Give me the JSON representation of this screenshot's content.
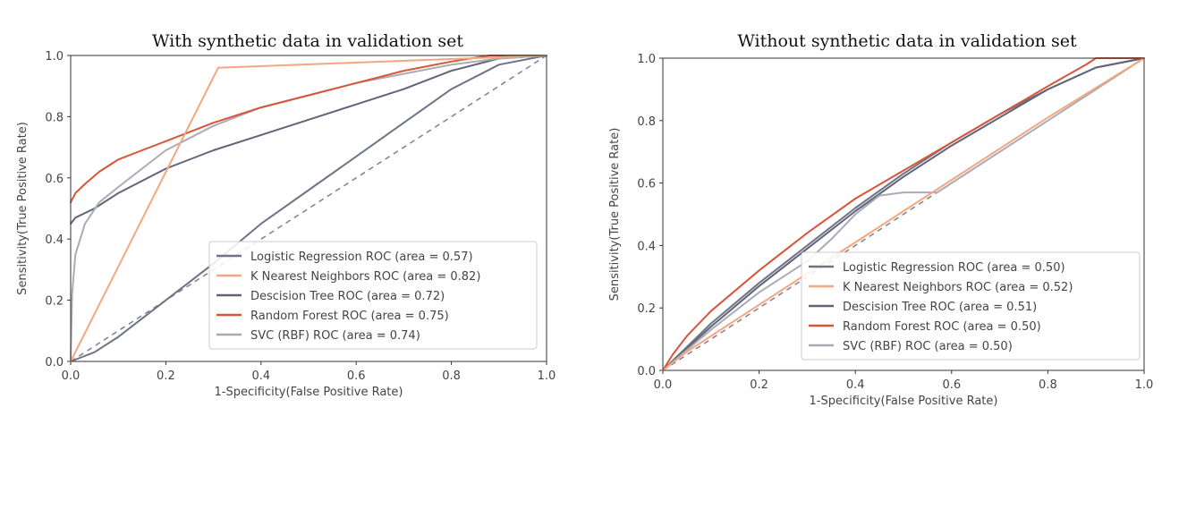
{
  "chart_data": [
    {
      "type": "line",
      "title": "With synthetic data in validation set",
      "xlabel": "1-Specificity(False Positive Rate)",
      "ylabel": "Sensitivity(True Positive Rate)",
      "xlim": [
        0,
        1
      ],
      "ylim": [
        0,
        1
      ],
      "xticks": [
        "0.0",
        "0.2",
        "0.4",
        "0.6",
        "0.8",
        "1.0"
      ],
      "yticks": [
        "0.0",
        "0.2",
        "0.4",
        "0.6",
        "0.8",
        "1.0"
      ],
      "grid": false,
      "legend_position": "lower-right",
      "series": [
        {
          "name": "Logistic Regression ROC (area = 0.57)",
          "color": "#6e7486",
          "x": [
            0,
            0.05,
            0.1,
            0.2,
            0.3,
            0.4,
            0.5,
            0.6,
            0.7,
            0.8,
            0.9,
            1.0
          ],
          "y": [
            0,
            0.03,
            0.08,
            0.2,
            0.32,
            0.45,
            0.56,
            0.67,
            0.78,
            0.89,
            0.97,
            1.0
          ]
        },
        {
          "name": "K Nearest Neighbors ROC (area = 0.82)",
          "color": "#f4a67f",
          "x": [
            0,
            0.31,
            1.0
          ],
          "y": [
            0,
            0.96,
            1.0
          ]
        },
        {
          "name": "Descision Tree ROC (area = 0.72)",
          "color": "#5f6577",
          "x": [
            0,
            0.01,
            0.05,
            0.1,
            0.2,
            0.3,
            0.4,
            0.5,
            0.6,
            0.7,
            0.8,
            0.9,
            1.0
          ],
          "y": [
            0.45,
            0.47,
            0.5,
            0.55,
            0.63,
            0.69,
            0.74,
            0.79,
            0.84,
            0.89,
            0.95,
            0.99,
            1.0
          ]
        },
        {
          "name": "Random Forest ROC (area = 0.75)",
          "color": "#d9553a",
          "x": [
            0,
            0.01,
            0.03,
            0.06,
            0.1,
            0.15,
            0.2,
            0.3,
            0.4,
            0.5,
            0.6,
            0.7,
            0.8,
            0.88,
            1.0
          ],
          "y": [
            0.52,
            0.55,
            0.58,
            0.62,
            0.66,
            0.69,
            0.72,
            0.78,
            0.83,
            0.87,
            0.91,
            0.95,
            0.98,
            1.0,
            1.0
          ]
        },
        {
          "name": "SVC (RBF) ROC (area = 0.74)",
          "color": "#a9acb6",
          "x": [
            0,
            0.003,
            0.01,
            0.03,
            0.06,
            0.1,
            0.15,
            0.2,
            0.3,
            0.4,
            0.5,
            0.6,
            0.7,
            0.8,
            0.9,
            1.0
          ],
          "y": [
            0,
            0.22,
            0.35,
            0.45,
            0.52,
            0.57,
            0.63,
            0.69,
            0.77,
            0.83,
            0.87,
            0.91,
            0.94,
            0.97,
            0.99,
            1.0
          ]
        }
      ]
    },
    {
      "type": "line",
      "title": "Without synthetic data in validation set",
      "xlabel": "1-Specificity(False Positive Rate)",
      "ylabel": "Sensitivity(True Positive Rate)",
      "xlim": [
        0,
        1
      ],
      "ylim": [
        0,
        1
      ],
      "xticks": [
        "0.0",
        "0.2",
        "0.4",
        "0.6",
        "0.8",
        "1.0"
      ],
      "yticks": [
        "0.0",
        "0.2",
        "0.4",
        "0.6",
        "0.8",
        "1.0"
      ],
      "grid": false,
      "legend_position": "lower-right",
      "series": [
        {
          "name": "Logistic Regression ROC (area = 0.50)",
          "color": "#6e7486",
          "x": [
            0,
            0.1,
            0.2,
            0.3,
            0.4,
            0.5,
            0.6,
            0.7,
            0.8,
            0.9,
            1.0
          ],
          "y": [
            0,
            0.15,
            0.28,
            0.4,
            0.52,
            0.63,
            0.73,
            0.82,
            0.9,
            0.97,
            1.0
          ]
        },
        {
          "name": "K Nearest Neighbors ROC (area = 0.52)",
          "color": "#f4a67f",
          "x": [
            0,
            0.05,
            0.2,
            0.4,
            0.6,
            0.8,
            1.0
          ],
          "y": [
            0,
            0.06,
            0.21,
            0.41,
            0.61,
            0.81,
            1.0
          ]
        },
        {
          "name": "Descision Tree ROC (area = 0.51)",
          "color": "#5f6577",
          "x": [
            0,
            0.1,
            0.2,
            0.3,
            0.4,
            0.5,
            0.6,
            0.7,
            0.8,
            0.9,
            1.0
          ],
          "y": [
            0,
            0.14,
            0.27,
            0.39,
            0.51,
            0.62,
            0.72,
            0.81,
            0.9,
            0.97,
            1.0
          ]
        },
        {
          "name": "Random Forest ROC (area = 0.50)",
          "color": "#d9553a",
          "x": [
            0,
            0.02,
            0.05,
            0.1,
            0.2,
            0.3,
            0.4,
            0.5,
            0.6,
            0.7,
            0.8,
            0.88,
            0.9,
            1.0
          ],
          "y": [
            0,
            0.05,
            0.11,
            0.19,
            0.32,
            0.44,
            0.55,
            0.64,
            0.73,
            0.82,
            0.91,
            0.98,
            1.0,
            1.0
          ]
        },
        {
          "name": "SVC (RBF) ROC (area = 0.50)",
          "color": "#a9acb6",
          "x": [
            0,
            0.1,
            0.2,
            0.3,
            0.35,
            0.4,
            0.45,
            0.5,
            0.57,
            0.6,
            0.7,
            0.8,
            0.9,
            1.0
          ],
          "y": [
            0,
            0.13,
            0.25,
            0.35,
            0.42,
            0.5,
            0.56,
            0.57,
            0.57,
            0.6,
            0.7,
            0.8,
            0.9,
            1.0
          ]
        }
      ]
    }
  ]
}
